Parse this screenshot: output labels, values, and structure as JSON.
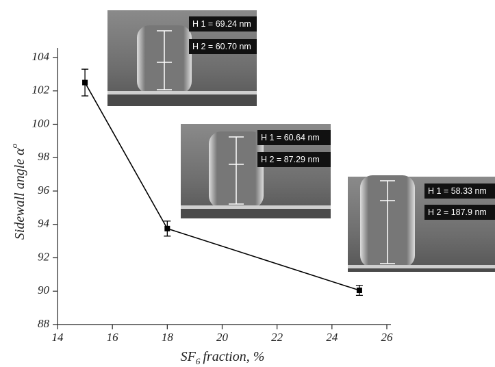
{
  "chart_data": {
    "type": "line",
    "x": [
      15,
      18,
      25
    ],
    "values": [
      102.5,
      93.75,
      90.05
    ],
    "errors": [
      0.8,
      0.45,
      0.3
    ],
    "color": "#000000",
    "xlim": [
      14,
      26
    ],
    "xticks": [
      14,
      16,
      18,
      20,
      22,
      24,
      26
    ],
    "ylim": [
      88,
      104
    ],
    "yticks": [
      88,
      90,
      92,
      94,
      96,
      98,
      100,
      102,
      104
    ],
    "y_label": "Sidewall angle α",
    "y_label_sup": "o",
    "x_label": "SF",
    "x_label_sub": "6",
    "x_label_rest": "fraction, %",
    "annotations": [
      {
        "labels": [
          "H 1 = 69.24 nm",
          "H 2 = 60.70 nm"
        ]
      },
      {
        "labels": [
          "H 1 = 60.64 nm",
          "H 2 = 87.29 nm"
        ]
      },
      {
        "labels": [
          "H 1 = 58.33 nm",
          "H 2 = 187.9 nm"
        ]
      }
    ]
  }
}
